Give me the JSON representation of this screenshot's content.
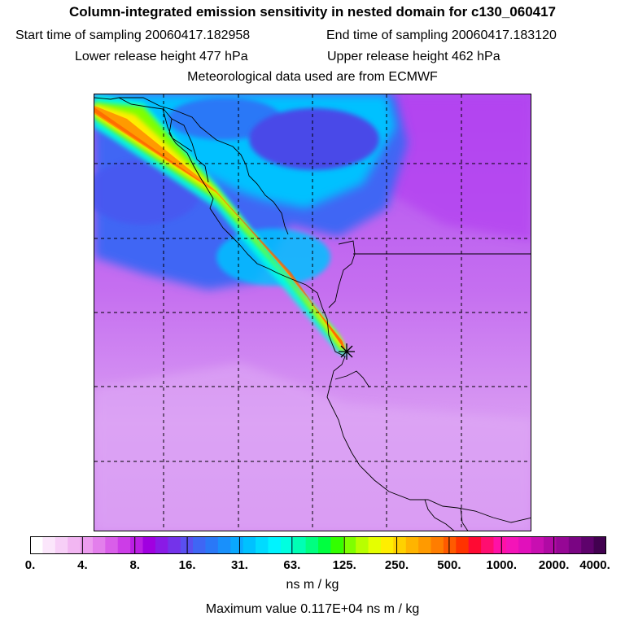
{
  "header": {
    "title": "Column-integrated emission sensitivity in nested domain for c130_060417",
    "start_time": "Start time of sampling 20060417.182958",
    "end_time": "End time of sampling 20060417.183120",
    "lower_height": "Lower release height  477 hPa",
    "upper_height": "Upper release height  462 hPa",
    "met_source": "Meteorological data used are from ECMWF"
  },
  "colorbar": {
    "labels": [
      "0.",
      "4.",
      "8.",
      "16.",
      "31.",
      "63.",
      "125.",
      "250.",
      "500.",
      "1000.",
      "2000.",
      "4000."
    ],
    "colors": [
      "#ffffff",
      "#fbe6fb",
      "#f7cff7",
      "#f2b6f2",
      "#ec9cef",
      "#e37fec",
      "#d95ee9",
      "#cc3de7",
      "#bb1fe4",
      "#a000e0",
      "#8a1ae6",
      "#7433ea",
      "#5a4ff0",
      "#3f66f4",
      "#2a78f7",
      "#1990fb",
      "#0aa8ff",
      "#00c1ff",
      "#00dbff",
      "#00f3ff",
      "#00ffe0",
      "#00ffb4",
      "#00ff80",
      "#00ff40",
      "#33ff00",
      "#7fff00",
      "#b8ff00",
      "#e5ff00",
      "#ffee00",
      "#ffd100",
      "#ffb400",
      "#ff9a00",
      "#ff7d00",
      "#ff5a00",
      "#ff3300",
      "#ff0a33",
      "#ff0e70",
      "#ff11a6",
      "#f414b8",
      "#e110bb",
      "#c80fb1",
      "#b00aa4",
      "#960795",
      "#7a0583",
      "#5e026c",
      "#420150"
    ],
    "unit": "ns m / kg",
    "max_value": "Maximum value  0.117E+04 ns m / kg"
  },
  "map": {
    "release_marker": "plus-star",
    "background_color": "#c35cf0",
    "plume_colors": [
      "#4a56f0",
      "#00b4ff",
      "#00ffe0",
      "#7fff00",
      "#ffee00",
      "#ff9a00",
      "#ff4a00"
    ]
  }
}
